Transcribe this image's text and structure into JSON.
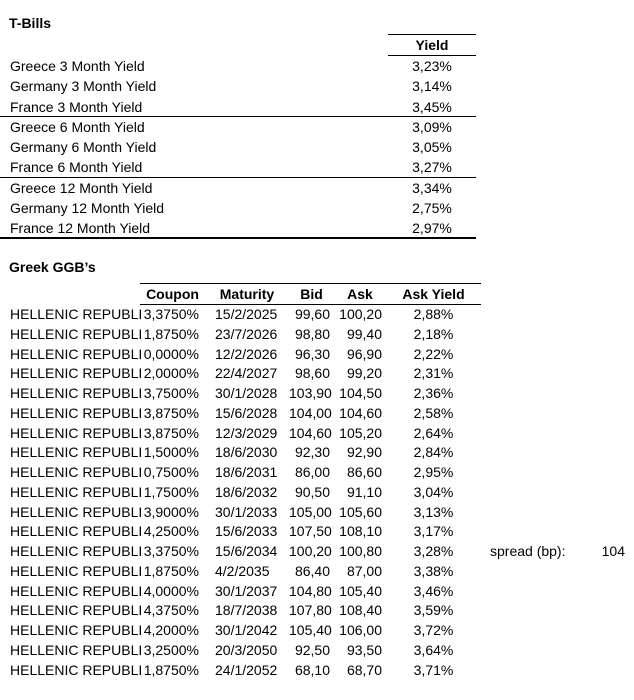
{
  "colors": {
    "text": "#000000",
    "background": "#ffffff"
  },
  "tbills": {
    "title": "T-Bills",
    "yield_header": "Yield",
    "rows": [
      {
        "label": "Greece 3 Month Yield",
        "value": "3,23%"
      },
      {
        "label": "Germany 3 Month Yield",
        "value": "3,14%"
      },
      {
        "label": "France 3 Month Yield",
        "value": "3,45%"
      },
      {
        "label": "Greece 6 Month Yield",
        "value": "3,09%"
      },
      {
        "label": "Germany 6 Month Yield",
        "value": "3,05%"
      },
      {
        "label": "France 6 Month Yield",
        "value": "3,27%"
      },
      {
        "label": "Greece 12 Month Yield",
        "value": "3,34%"
      },
      {
        "label": "Germany 12 Month Yield",
        "value": "2,75%"
      },
      {
        "label": "France 12 Month Yield",
        "value": "2,97%"
      }
    ]
  },
  "ggb": {
    "title": "Greek GGB’s",
    "headers": {
      "coupon": "Coupon",
      "maturity": "Maturity",
      "bid": "Bid",
      "ask": "Ask",
      "ask_yield": "Ask Yield"
    },
    "rows": [
      {
        "name": "HELLENIC REPUBLI",
        "coupon": "3,3750%",
        "maturity": "15/2/2025",
        "bid": "99,60",
        "ask": "100,20",
        "ask_yield": "2,88%"
      },
      {
        "name": "HELLENIC REPUBLI",
        "coupon": "1,8750%",
        "maturity": "23/7/2026",
        "bid": "98,80",
        "ask": "99,40",
        "ask_yield": "2,18%"
      },
      {
        "name": "HELLENIC REPUBLI",
        "coupon": "0,0000%",
        "maturity": "12/2/2026",
        "bid": "96,30",
        "ask": "96,90",
        "ask_yield": "2,22%"
      },
      {
        "name": "HELLENIC REPUBLI",
        "coupon": "2,0000%",
        "maturity": "22/4/2027",
        "bid": "98,60",
        "ask": "99,20",
        "ask_yield": "2,31%"
      },
      {
        "name": "HELLENIC REPUBLI",
        "coupon": "3,7500%",
        "maturity": "30/1/2028",
        "bid": "103,90",
        "ask": "104,50",
        "ask_yield": "2,36%"
      },
      {
        "name": "HELLENIC REPUBLI",
        "coupon": "3,8750%",
        "maturity": "15/6/2028",
        "bid": "104,00",
        "ask": "104,60",
        "ask_yield": "2,58%"
      },
      {
        "name": "HELLENIC REPUBLI",
        "coupon": "3,8750%",
        "maturity": "12/3/2029",
        "bid": "104,60",
        "ask": "105,20",
        "ask_yield": "2,64%"
      },
      {
        "name": "HELLENIC REPUBLI",
        "coupon": "1,5000%",
        "maturity": "18/6/2030",
        "bid": "92,30",
        "ask": "92,90",
        "ask_yield": "2,84%"
      },
      {
        "name": "HELLENIC REPUBLI",
        "coupon": "0,7500%",
        "maturity": "18/6/2031",
        "bid": "86,00",
        "ask": "86,60",
        "ask_yield": "2,95%"
      },
      {
        "name": "HELLENIC REPUBLI",
        "coupon": "1,7500%",
        "maturity": "18/6/2032",
        "bid": "90,50",
        "ask": "91,10",
        "ask_yield": "3,04%"
      },
      {
        "name": "HELLENIC REPUBLI",
        "coupon": "3,9000%",
        "maturity": "30/1/2033",
        "bid": "105,00",
        "ask": "105,60",
        "ask_yield": "3,13%"
      },
      {
        "name": "HELLENIC REPUBLI",
        "coupon": "4,2500%",
        "maturity": "15/6/2033",
        "bid": "107,50",
        "ask": "108,10",
        "ask_yield": "3,17%"
      },
      {
        "name": "HELLENIC REPUBLI",
        "coupon": "3,3750%",
        "maturity": "15/6/2034",
        "bid": "100,20",
        "ask": "100,80",
        "ask_yield": "3,28%"
      },
      {
        "name": "HELLENIC REPUBLI",
        "coupon": "1,8750%",
        "maturity": "4/2/2035",
        "bid": "86,40",
        "ask": "87,00",
        "ask_yield": "3,38%"
      },
      {
        "name": "HELLENIC REPUBLI",
        "coupon": "4,0000%",
        "maturity": "30/1/2037",
        "bid": "104,80",
        "ask": "105,40",
        "ask_yield": "3,46%"
      },
      {
        "name": "HELLENIC REPUBLI",
        "coupon": "4,3750%",
        "maturity": "18/7/2038",
        "bid": "107,80",
        "ask": "108,40",
        "ask_yield": "3,59%"
      },
      {
        "name": "HELLENIC REPUBLI",
        "coupon": "4,2000%",
        "maturity": "30/1/2042",
        "bid": "105,40",
        "ask": "106,00",
        "ask_yield": "3,72%"
      },
      {
        "name": "HELLENIC REPUBLI",
        "coupon": "3,2500%",
        "maturity": "20/3/2050",
        "bid": "92,50",
        "ask": "93,50",
        "ask_yield": "3,64%"
      },
      {
        "name": "HELLENIC REPUBLI",
        "coupon": "1,8750%",
        "maturity": "24/1/2052",
        "bid": "68,10",
        "ask": "68,70",
        "ask_yield": "3,71%"
      }
    ]
  },
  "spread": {
    "label": "spread (bp):",
    "value": "104"
  }
}
